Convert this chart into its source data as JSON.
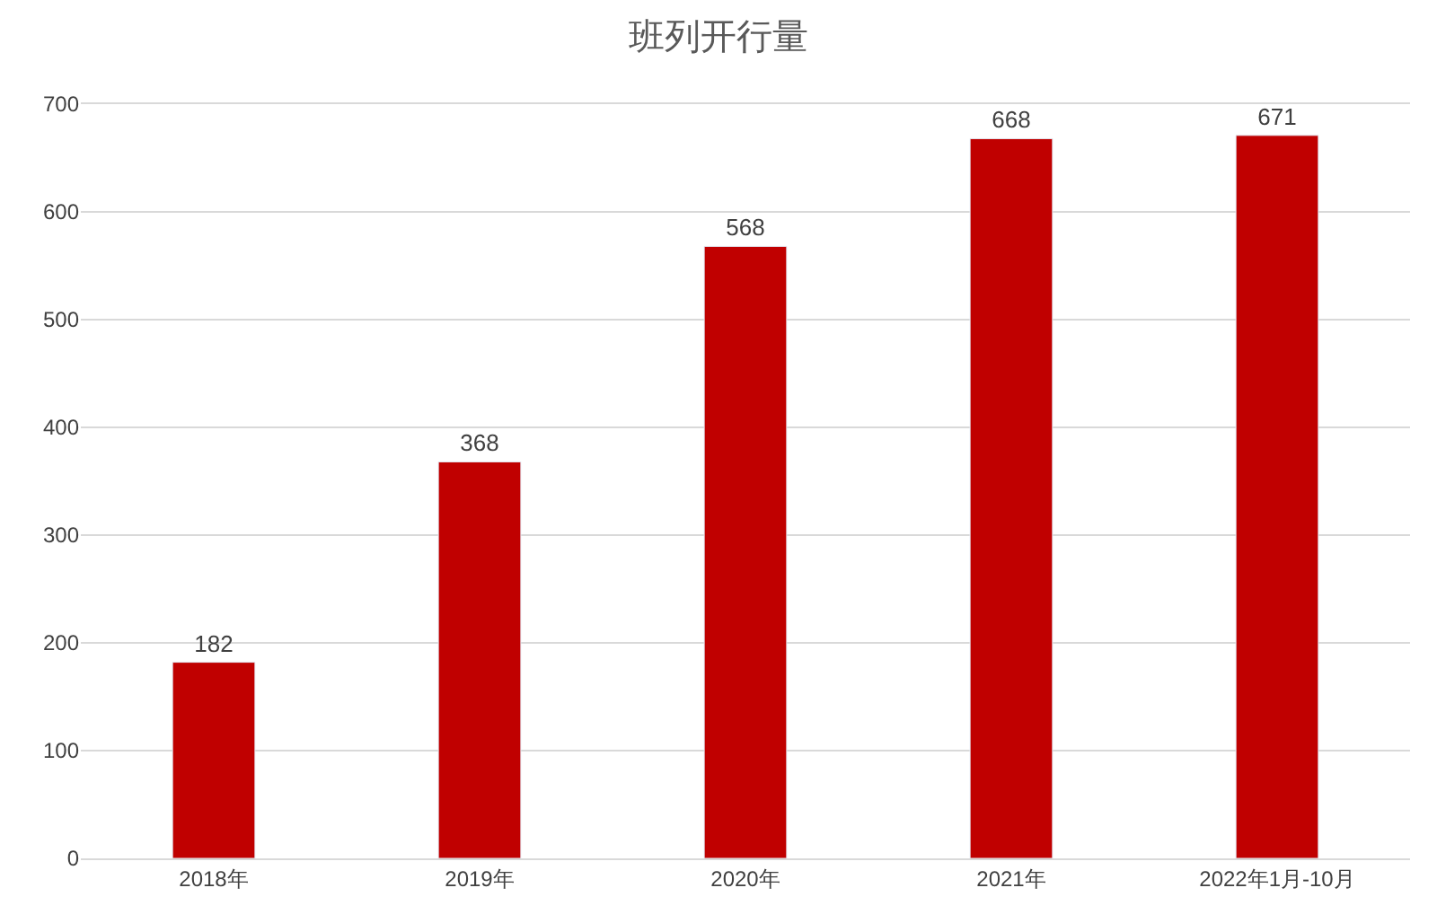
{
  "chart_data": {
    "type": "bar",
    "title": "班列开行量",
    "categories": [
      "2018年",
      "2019年",
      "2020年",
      "2021年",
      "2022年1月-10月"
    ],
    "values": [
      182,
      368,
      568,
      668,
      671
    ],
    "color": "#c00000",
    "ylim": [
      0,
      700
    ],
    "yticks": [
      0,
      100,
      200,
      300,
      400,
      500,
      600,
      700
    ],
    "grid": "y",
    "data_labels": true
  }
}
